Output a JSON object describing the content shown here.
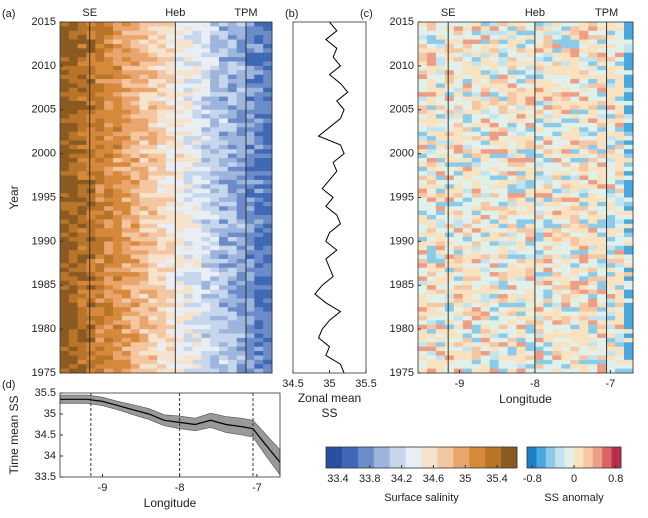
{
  "chart_data": [
    {
      "type": "contour",
      "panel": "(a)",
      "ylabel": "Year",
      "ylim": [
        1975,
        2015
      ],
      "yticks": [
        1975,
        1980,
        1985,
        1990,
        1995,
        2000,
        2005,
        2010,
        2015
      ],
      "xlim": [
        -9.55,
        -6.7
      ],
      "markers": [
        {
          "label": "SE",
          "value": -9.15
        },
        {
          "label": "Heb",
          "value": -8.0
        },
        {
          "label": "TPM",
          "value": -7.05
        }
      ]
    },
    {
      "type": "line",
      "panel": "(b)",
      "xlabel_lines": [
        "Zonal mean",
        "SS"
      ],
      "xlim": [
        34.5,
        35.5
      ],
      "xticks": [
        34.5,
        35,
        35.5
      ],
      "ylim": [
        1975,
        2015
      ],
      "color": "#000000",
      "y": [
        1975,
        1976,
        1977,
        1978,
        1979,
        1980,
        1981,
        1982,
        1983,
        1984,
        1985,
        1986,
        1987,
        1988,
        1989,
        1990,
        1991,
        1992,
        1993,
        1994,
        1995,
        1996,
        1997,
        1998,
        1999,
        2000,
        2001,
        2002,
        2003,
        2004,
        2005,
        2006,
        2007,
        2008,
        2009,
        2010,
        2011,
        2012,
        2013,
        2014,
        2015
      ],
      "values": [
        35.2,
        35.15,
        34.95,
        35.0,
        34.85,
        34.9,
        35.0,
        35.15,
        34.95,
        34.8,
        34.9,
        35.05,
        35.0,
        34.95,
        35.1,
        34.95,
        35.0,
        35.15,
        35.1,
        34.95,
        35.05,
        34.9,
        35.0,
        35.1,
        35.05,
        35.2,
        35.15,
        34.85,
        35.0,
        35.15,
        35.2,
        35.1,
        35.25,
        35.15,
        35.0,
        35.15,
        35.05,
        35.1,
        34.95,
        35.1,
        35.0
      ]
    },
    {
      "type": "contour",
      "panel": "(c)",
      "xlabel": "Longitude",
      "xlim": [
        -9.55,
        -6.7
      ],
      "xticks": [
        -9,
        -8,
        -7
      ],
      "ylim": [
        1975,
        2015
      ],
      "yticks": [
        1975,
        1980,
        1985,
        1990,
        1995,
        2000,
        2005,
        2010,
        2015
      ],
      "anomaly": true,
      "markers": [
        {
          "label": "SE",
          "value": -9.15
        },
        {
          "label": "Heb",
          "value": -8.0
        },
        {
          "label": "TPM",
          "value": -7.05
        }
      ]
    },
    {
      "type": "band-line",
      "panel": "(d)",
      "ylabel": "Time mean SS",
      "xlabel": "Longitude",
      "xlim": [
        -9.55,
        -6.7
      ],
      "xticks": [
        -9,
        -8,
        -7
      ],
      "ylim": [
        33.5,
        35.5
      ],
      "yticks": [
        33.5,
        34,
        34.5,
        35,
        35.5
      ],
      "color": "#000000",
      "band_color": "#999999",
      "x": [
        -9.55,
        -9.2,
        -9.0,
        -8.8,
        -8.6,
        -8.4,
        -8.2,
        -8.0,
        -7.8,
        -7.6,
        -7.4,
        -7.2,
        -7.05,
        -6.9,
        -6.7
      ],
      "values": [
        35.35,
        35.35,
        35.3,
        35.2,
        35.1,
        35.0,
        34.85,
        34.8,
        34.75,
        34.85,
        34.75,
        34.7,
        34.65,
        34.3,
        33.85
      ],
      "lower": [
        35.25,
        35.25,
        35.2,
        35.1,
        34.98,
        34.87,
        34.72,
        34.65,
        34.6,
        34.68,
        34.56,
        34.5,
        34.45,
        34.05,
        33.55
      ],
      "upper": [
        35.45,
        35.45,
        35.4,
        35.3,
        35.22,
        35.13,
        34.98,
        34.95,
        34.9,
        35.02,
        34.94,
        34.9,
        34.85,
        34.55,
        34.15
      ],
      "markers": [
        {
          "value": -9.15
        },
        {
          "value": -8.0
        },
        {
          "value": -7.05
        }
      ]
    },
    {
      "type": "colorbar",
      "label": "Surface salinity",
      "xlim": [
        33.25,
        35.65
      ],
      "xticks": [
        33.4,
        33.8,
        34.2,
        34.6,
        35,
        35.4
      ],
      "colors": [
        "#2a4fa0",
        "#3f68b5",
        "#6b8cc8",
        "#9db5dc",
        "#c6d6ec",
        "#e8eef3",
        "#f6e3cd",
        "#f3c7a2",
        "#eaa56e",
        "#d6893b",
        "#b87428",
        "#8a5a22"
      ]
    },
    {
      "type": "colorbar",
      "label": "SS anomaly",
      "xlim": [
        -0.9,
        0.9
      ],
      "xticks": [
        -0.8,
        0,
        0.8
      ],
      "colors": [
        "#1f7fc4",
        "#48a7dc",
        "#8ccbe8",
        "#c3e4ef",
        "#e2f0ea",
        "#f8e2c0",
        "#f6c7a4",
        "#ee9e85",
        "#d96366",
        "#b82e4a"
      ]
    }
  ]
}
